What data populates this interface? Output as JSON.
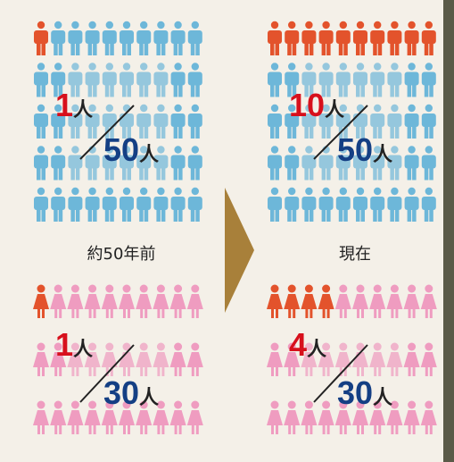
{
  "unit": "人",
  "periods": [
    {
      "label": "約50年前",
      "men": {
        "count": 1,
        "total": 50
      },
      "women": {
        "count": 1,
        "total": 30
      }
    },
    {
      "label": "現在",
      "men": {
        "count": 10,
        "total": 50
      },
      "women": {
        "count": 4,
        "total": 30
      }
    }
  ]
}
